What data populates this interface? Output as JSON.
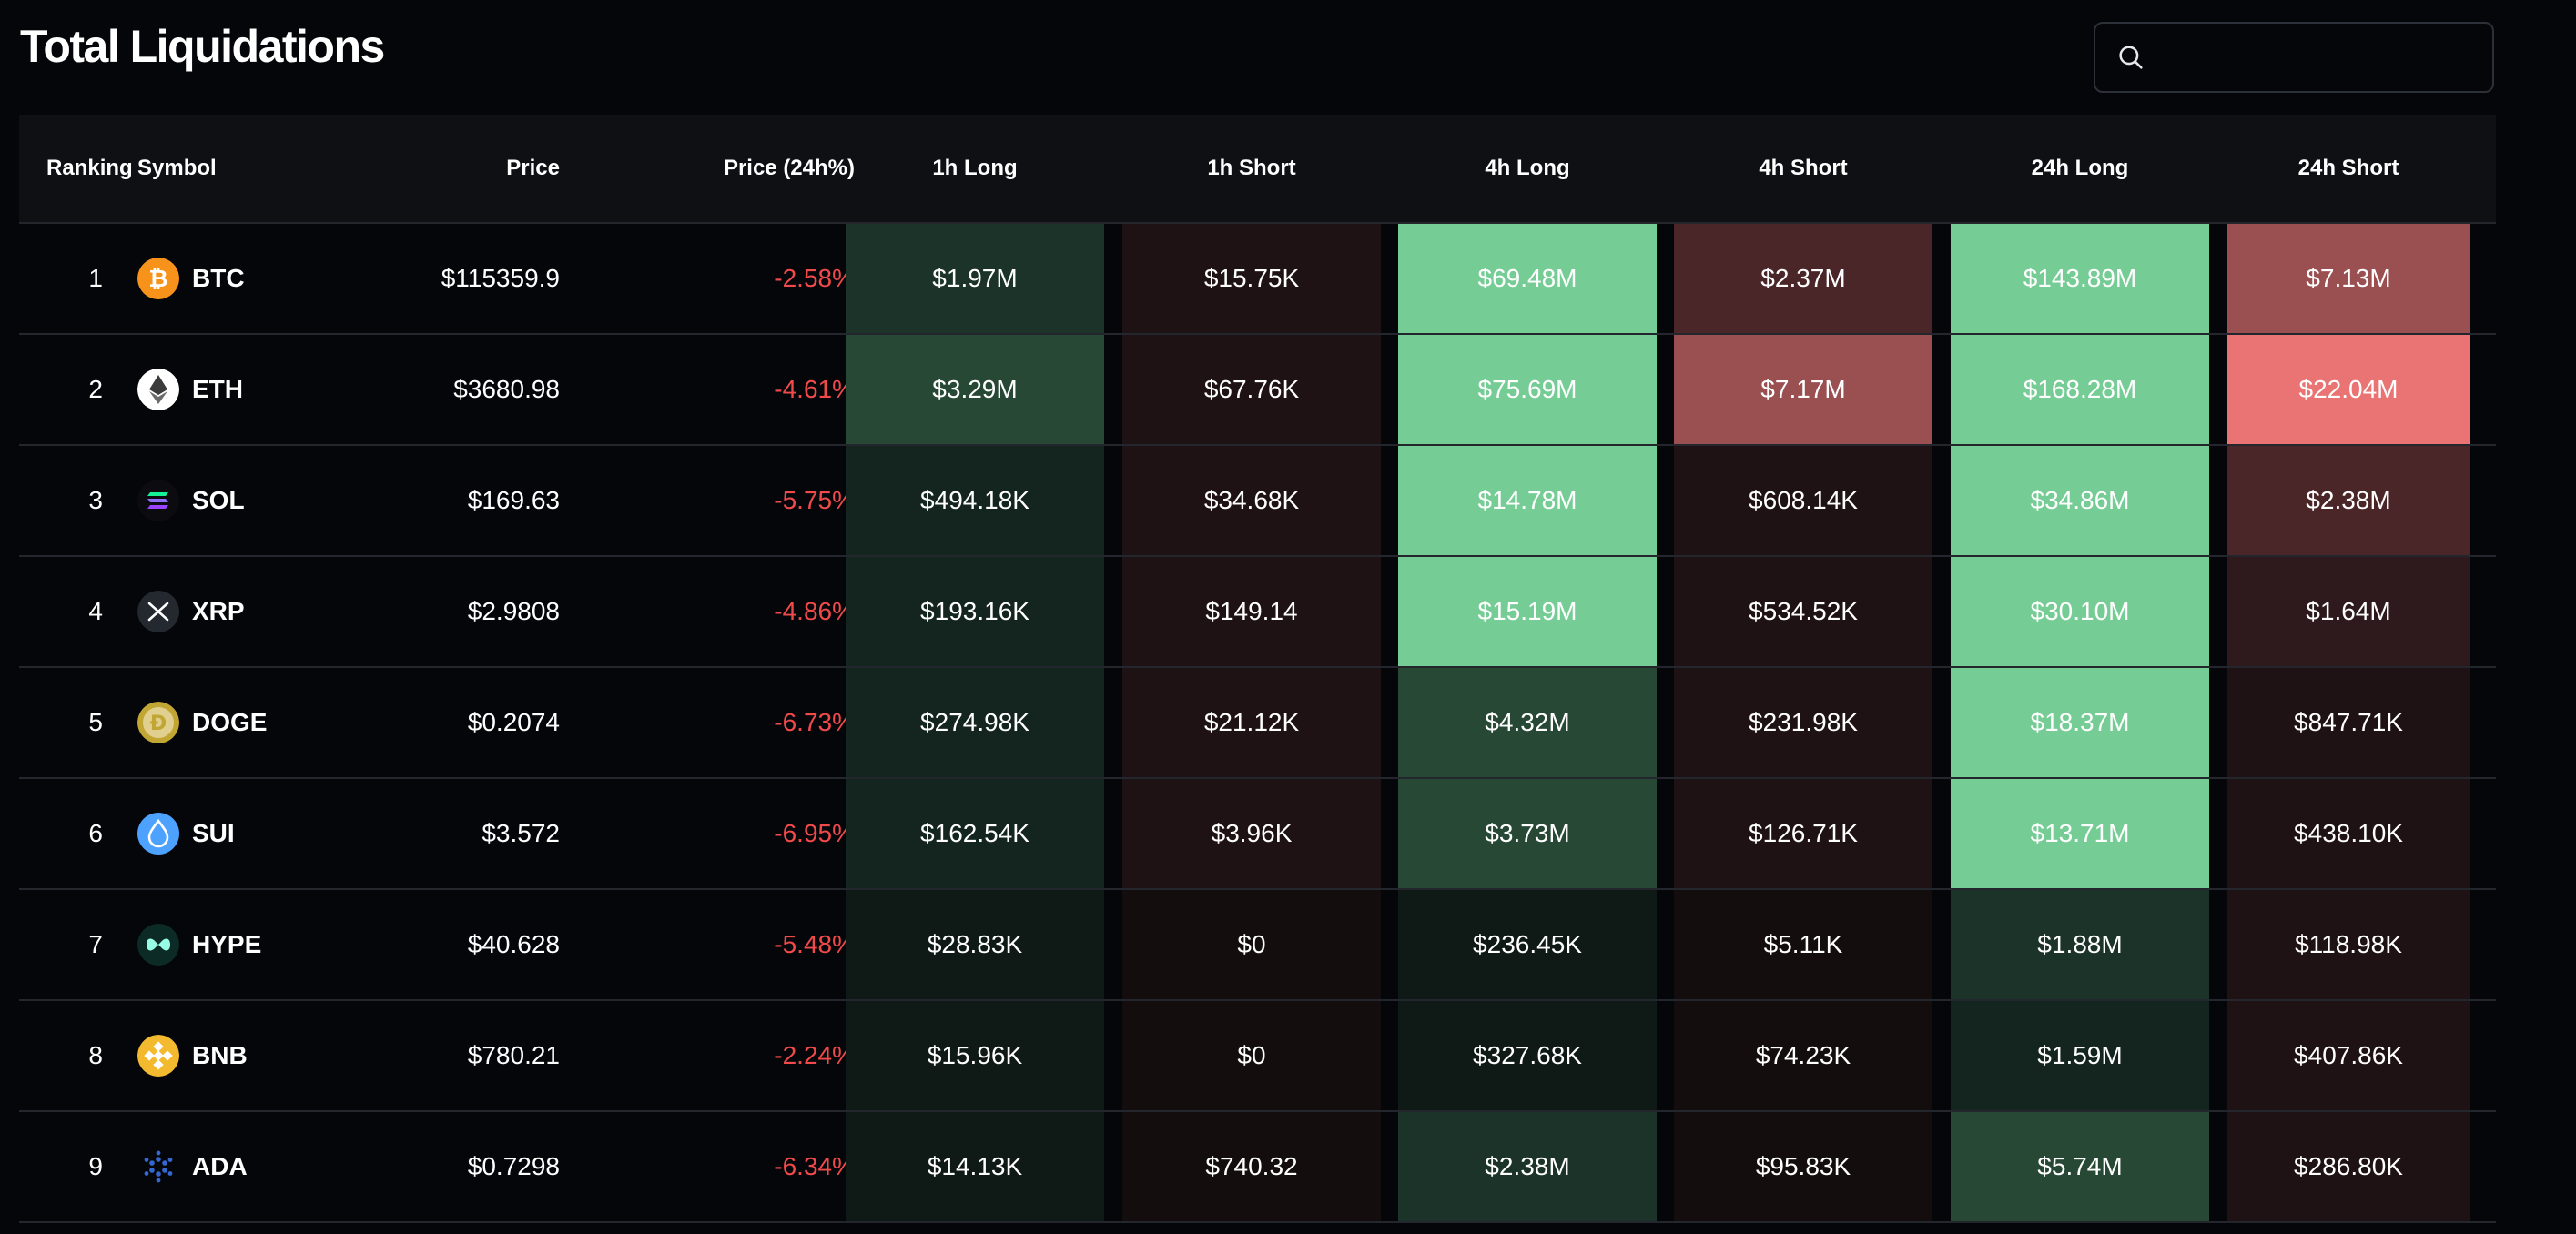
{
  "header": {
    "title": "Total Liquidations",
    "search_placeholder": ""
  },
  "columns": {
    "ranking": "Ranking",
    "symbol": "Symbol",
    "price": "Price",
    "price_change": "Price (24h%)",
    "h1_long": "1h Long",
    "h1_short": "1h Short",
    "h4_long": "4h Long",
    "h4_short": "4h Short",
    "h24_long": "24h Long",
    "h24_short": "24h Short"
  },
  "colors": {
    "negative_text": "#f04a4a",
    "long_scale": [
      "#0f1a16",
      "#142520",
      "#1b3328",
      "#274835",
      "#3a6a4e",
      "#76cc95"
    ],
    "short_scale": [
      "#140d0e",
      "#1f1214",
      "#2e1a1c",
      "#4a2628",
      "#9a4f51",
      "#ea7373"
    ]
  },
  "rows": [
    {
      "rank": "1",
      "symbol": "BTC",
      "icon": "bitcoin-icon",
      "price": "$115359.9",
      "change": "-2.58%",
      "h1_long": "$1.97M",
      "h1_short": "$15.75K",
      "h4_long": "$69.48M",
      "h4_short": "$2.37M",
      "h24_long": "$143.89M",
      "h24_short": "$7.13M",
      "levels": [
        2,
        1,
        5,
        3,
        5,
        4
      ]
    },
    {
      "rank": "2",
      "symbol": "ETH",
      "icon": "ethereum-icon",
      "price": "$3680.98",
      "change": "-4.61%",
      "h1_long": "$3.29M",
      "h1_short": "$67.76K",
      "h4_long": "$75.69M",
      "h4_short": "$7.17M",
      "h24_long": "$168.28M",
      "h24_short": "$22.04M",
      "levels": [
        3,
        1,
        5,
        4,
        5,
        5
      ]
    },
    {
      "rank": "3",
      "symbol": "SOL",
      "icon": "solana-icon",
      "price": "$169.63",
      "change": "-5.75%",
      "h1_long": "$494.18K",
      "h1_short": "$34.68K",
      "h4_long": "$14.78M",
      "h4_short": "$608.14K",
      "h24_long": "$34.86M",
      "h24_short": "$2.38M",
      "levels": [
        1,
        1,
        5,
        1,
        5,
        3
      ]
    },
    {
      "rank": "4",
      "symbol": "XRP",
      "icon": "xrp-icon",
      "price": "$2.9808",
      "change": "-4.86%",
      "h1_long": "$193.16K",
      "h1_short": "$149.14",
      "h4_long": "$15.19M",
      "h4_short": "$534.52K",
      "h24_long": "$30.10M",
      "h24_short": "$1.64M",
      "levels": [
        1,
        1,
        5,
        1,
        5,
        2
      ]
    },
    {
      "rank": "5",
      "symbol": "DOGE",
      "icon": "dogecoin-icon",
      "price": "$0.2074",
      "change": "-6.73%",
      "h1_long": "$274.98K",
      "h1_short": "$21.12K",
      "h4_long": "$4.32M",
      "h4_short": "$231.98K",
      "h24_long": "$18.37M",
      "h24_short": "$847.71K",
      "levels": [
        1,
        1,
        3,
        1,
        5,
        1
      ]
    },
    {
      "rank": "6",
      "symbol": "SUI",
      "icon": "sui-icon",
      "price": "$3.572",
      "change": "-6.95%",
      "h1_long": "$162.54K",
      "h1_short": "$3.96K",
      "h4_long": "$3.73M",
      "h4_short": "$126.71K",
      "h24_long": "$13.71M",
      "h24_short": "$438.10K",
      "levels": [
        1,
        1,
        3,
        1,
        5,
        1
      ]
    },
    {
      "rank": "7",
      "symbol": "HYPE",
      "icon": "hyperliquid-icon",
      "price": "$40.628",
      "change": "-5.48%",
      "h1_long": "$28.83K",
      "h1_short": "$0",
      "h4_long": "$236.45K",
      "h4_short": "$5.11K",
      "h24_long": "$1.88M",
      "h24_short": "$118.98K",
      "levels": [
        0,
        0,
        0,
        0,
        2,
        1
      ]
    },
    {
      "rank": "8",
      "symbol": "BNB",
      "icon": "binance-icon",
      "price": "$780.21",
      "change": "-2.24%",
      "h1_long": "$15.96K",
      "h1_short": "$0",
      "h4_long": "$327.68K",
      "h4_short": "$74.23K",
      "h24_long": "$1.59M",
      "h24_short": "$407.86K",
      "levels": [
        0,
        0,
        0,
        0,
        1,
        1
      ]
    },
    {
      "rank": "9",
      "symbol": "ADA",
      "icon": "cardano-icon",
      "price": "$0.7298",
      "change": "-6.34%",
      "h1_long": "$14.13K",
      "h1_short": "$740.32",
      "h4_long": "$2.38M",
      "h4_short": "$95.83K",
      "h24_long": "$5.74M",
      "h24_short": "$286.80K",
      "levels": [
        0,
        0,
        2,
        0,
        3,
        1
      ]
    }
  ]
}
